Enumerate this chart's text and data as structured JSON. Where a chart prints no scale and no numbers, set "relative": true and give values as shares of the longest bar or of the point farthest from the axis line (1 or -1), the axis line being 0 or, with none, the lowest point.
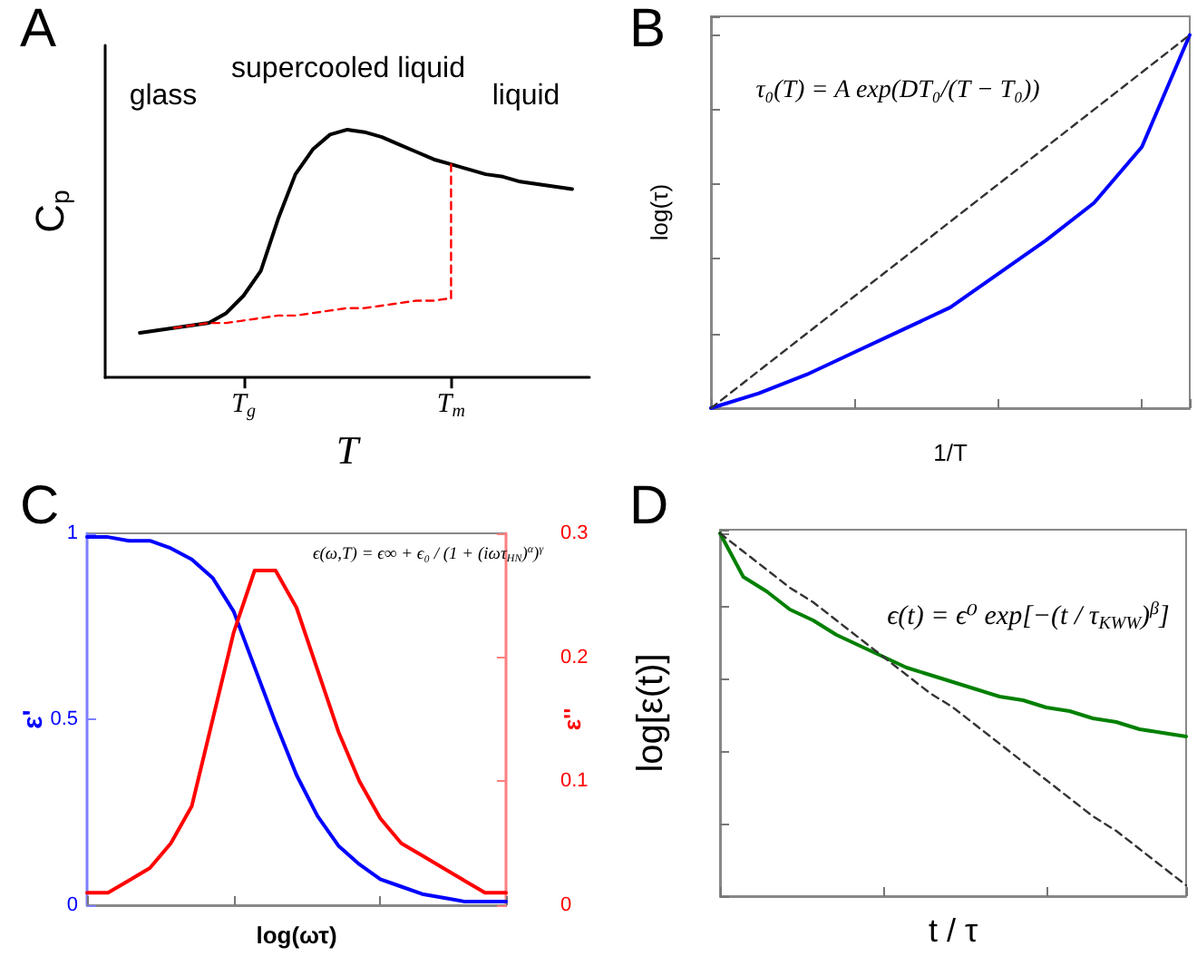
{
  "chart_data": [
    {
      "type": "line",
      "title": "A",
      "xlabel": "T",
      "ylabel": "C$_{p}$",
      "relative": true,
      "categories": [
        null,
        null,
        null,
        null,
        null,
        null,
        null,
        null,
        "T$_{g}$",
        null,
        null,
        null,
        null,
        null,
        null,
        null,
        null,
        null,
        null,
        null,
        "T$_{m}$",
        null,
        null,
        null,
        null,
        null,
        null,
        null,
        null
      ],
      "tick_labels": "x",
      "marker": "none",
      "annotations": [
        "glass",
        "supercooled liquid",
        "liquid"
      ],
      "series": [
        {
          "color": "#000000",
          "values": [
            null,
            null,
            0.18,
            0.19,
            0.2,
            0.21,
            0.22,
            0.26,
            0.33,
            0.43,
            0.64,
            0.82,
            0.92,
            0.98,
            1,
            0.99,
            0.97,
            0.94,
            0.91,
            0.88,
            0.86,
            0.84,
            0.82,
            0.81,
            0.79,
            0.78,
            0.77,
            0.76,
            null
          ]
        },
        {
          "color": "#ff0000",
          "line_style": "dashed",
          "values": [
            null,
            null,
            null,
            null,
            0.2,
            0.21,
            0.22,
            0.22,
            0.23,
            0.24,
            0.25,
            0.25,
            0.26,
            0.27,
            0.28,
            0.28,
            0.29,
            0.3,
            0.31,
            0.31,
            0.32,
            null,
            null,
            null,
            null,
            null,
            null,
            null,
            null
          ]
        },
        {
          "color": "#ff0000",
          "line_style": "dashed",
          "x": [
            "T$_{m}$",
            "T$_{m}$"
          ],
          "values": [
            0.32,
            0.86
          ]
        }
      ]
    },
    {
      "type": "line",
      "title": "B",
      "xlabel": "1/T",
      "ylabel": "log(τ)",
      "relative": true,
      "categories": [
        null,
        null,
        null,
        null,
        null,
        null,
        null,
        null,
        null,
        null,
        null
      ],
      "tick_labels": false,
      "marker": "none",
      "annotations": [
        "τ₀(T) = A exp(DT₀/(T − T₀))"
      ],
      "series": [
        {
          "color": "#0000ff",
          "values": [
            0,
            0.04,
            0.09,
            0.15,
            0.21,
            0.27,
            0.36,
            0.45,
            0.55,
            0.7,
            1
          ]
        },
        {
          "color": "#333333",
          "line_style": "dashed",
          "values": [
            0,
            0.1,
            0.2,
            0.3,
            0.4,
            0.5,
            0.6,
            0.7,
            0.8,
            0.9,
            1
          ]
        }
      ]
    },
    {
      "type": "line",
      "title": "C",
      "xlabel": "log(ωτ)",
      "ylabel": "ε'",
      "y2label": "ε''",
      "categories": [
        null,
        null,
        null,
        null,
        null,
        null,
        null,
        null,
        null,
        null,
        null,
        null,
        null,
        null,
        null,
        null,
        null,
        null,
        null,
        null,
        null
      ],
      "ylim": [
        0,
        1
      ],
      "yticks": [
        0,
        0.5,
        1
      ],
      "y2lim": [
        0,
        0.3
      ],
      "y2ticks": [
        0,
        0.1,
        0.2,
        0.3
      ],
      "tick_labels": "y",
      "marker": "none",
      "annotations": [
        "ϵ(ω,T) = ϵ∞ + ϵ₀ / (1 + (iωτ$_{HN}$)$^{α}$)$^{γ}$"
      ],
      "series": [
        {
          "color": "#0000ff",
          "values": [
            0.99,
            0.99,
            0.98,
            0.98,
            0.96,
            0.93,
            0.88,
            0.79,
            0.64,
            0.49,
            0.35,
            0.24,
            0.16,
            0.11,
            0.07,
            0.05,
            0.03,
            0.02,
            0.01,
            0.01,
            0.01
          ]
        },
        {
          "color": "#ff0000",
          "axis": "y2",
          "values": [
            0.01,
            0.01,
            0.02,
            0.03,
            0.05,
            0.08,
            0.15,
            0.22,
            0.27,
            0.27,
            0.24,
            0.19,
            0.14,
            0.1,
            0.07,
            0.05,
            0.04,
            0.03,
            0.02,
            0.01,
            0.01
          ]
        }
      ]
    },
    {
      "type": "line",
      "title": "D",
      "xlabel": "t / τ",
      "ylabel": "log[ε(t)]",
      "relative": true,
      "categories": [
        null,
        null,
        null,
        null,
        null,
        null,
        null,
        null,
        null,
        null,
        null,
        null,
        null,
        null,
        null,
        null,
        null,
        null,
        null,
        null,
        null
      ],
      "tick_labels": false,
      "marker": "none",
      "annotations": [
        "ϵ(t) = ϵ⁰ exp[−(t / τ$_{KWW}$)$^{β}$]"
      ],
      "series": [
        {
          "color": "#008000",
          "values": [
            1,
            0.88,
            0.84,
            0.79,
            0.76,
            0.72,
            0.69,
            0.66,
            0.63,
            0.61,
            0.59,
            0.57,
            0.55,
            0.54,
            0.52,
            0.51,
            0.49,
            0.48,
            0.46,
            0.45,
            0.44
          ]
        },
        {
          "color": "#333333",
          "line_style": "dashed",
          "values": [
            1,
            0.95,
            0.9,
            0.85,
            0.81,
            0.76,
            0.71,
            0.66,
            0.61,
            0.56,
            0.52,
            0.47,
            0.42,
            0.37,
            0.32,
            0.27,
            0.22,
            0.18,
            0.13,
            0.08,
            0.03
          ]
        }
      ]
    }
  ]
}
